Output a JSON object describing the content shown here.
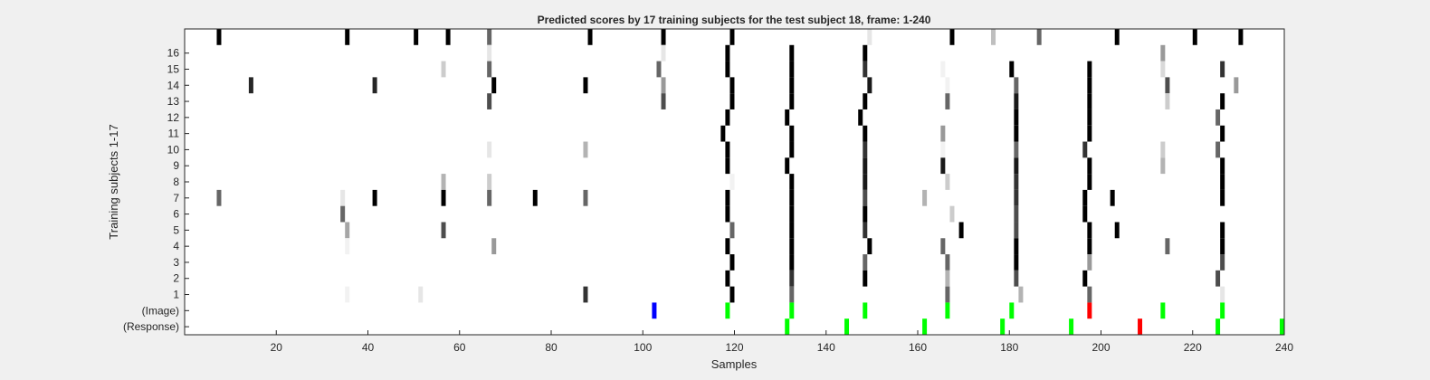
{
  "chart_data": {
    "type": "heatmap",
    "title": "Predicted scores by 17 training subjects for the test subject 18, frame: 1-240",
    "xlabel": "Samples",
    "ylabel": "Training subjects 1-17",
    "xlim": [
      1,
      240
    ],
    "x_ticks": [
      20,
      40,
      60,
      80,
      100,
      120,
      140,
      160,
      180,
      200,
      220,
      240
    ],
    "y_tick_labels": [
      "1",
      "2",
      "3",
      "4",
      "5",
      "6",
      "7",
      "8",
      "9",
      "10",
      "11",
      "12",
      "13",
      "14",
      "15",
      "16"
    ],
    "extra_rows": [
      "(Image)",
      "(Response)"
    ],
    "grid": false,
    "colormap": "gray (white = low score, black = high score)",
    "value_range": [
      0,
      1
    ],
    "rows": [
      {
        "subject": 17,
        "marks": [
          [
            8,
            1
          ],
          [
            36,
            1
          ],
          [
            51,
            1
          ],
          [
            58,
            1
          ],
          [
            67,
            0.6
          ],
          [
            89,
            1
          ],
          [
            105,
            1
          ],
          [
            120,
            1
          ],
          [
            150,
            0.1
          ],
          [
            168,
            1
          ],
          [
            177,
            0.25
          ],
          [
            187,
            0.6
          ],
          [
            204,
            1
          ],
          [
            221,
            1
          ],
          [
            231,
            1
          ]
        ]
      },
      {
        "subject": 16,
        "marks": [
          [
            67,
            0.1
          ],
          [
            105,
            0.1
          ],
          [
            119,
            1
          ],
          [
            133,
            1
          ],
          [
            149,
            1
          ],
          [
            214,
            0.4
          ]
        ]
      },
      {
        "subject": 15,
        "marks": [
          [
            57,
            0.2
          ],
          [
            67,
            0.6
          ],
          [
            104,
            0.6
          ],
          [
            119,
            1
          ],
          [
            133,
            1
          ],
          [
            149,
            0.8
          ],
          [
            166,
            0.05
          ],
          [
            181,
            1
          ],
          [
            198,
            1
          ],
          [
            214,
            0.15
          ],
          [
            227,
            0.8
          ]
        ]
      },
      {
        "subject": 14,
        "marks": [
          [
            15,
            0.85
          ],
          [
            42,
            0.85
          ],
          [
            68,
            1
          ],
          [
            88,
            1
          ],
          [
            105,
            0.4
          ],
          [
            120,
            1
          ],
          [
            133,
            1
          ],
          [
            150,
            0.9
          ],
          [
            167,
            0.05
          ],
          [
            182,
            0.6
          ],
          [
            198,
            1
          ],
          [
            215,
            0.7
          ],
          [
            230,
            0.4
          ]
        ]
      },
      {
        "subject": 13,
        "marks": [
          [
            67,
            0.7
          ],
          [
            105,
            0.7
          ],
          [
            120,
            1
          ],
          [
            133,
            1
          ],
          [
            149,
            1
          ],
          [
            167,
            0.6
          ],
          [
            182,
            0.9
          ],
          [
            198,
            1
          ],
          [
            215,
            0.2
          ],
          [
            227,
            1
          ]
        ]
      },
      {
        "subject": 12,
        "marks": [
          [
            119,
            1
          ],
          [
            132,
            1
          ],
          [
            148,
            1
          ],
          [
            182,
            1
          ],
          [
            198,
            1
          ],
          [
            226,
            0.6
          ]
        ]
      },
      {
        "subject": 11,
        "marks": [
          [
            118,
            1
          ],
          [
            133,
            1
          ],
          [
            149,
            1
          ],
          [
            166,
            0.4
          ],
          [
            182,
            1
          ],
          [
            198,
            1
          ],
          [
            227,
            1
          ]
        ]
      },
      {
        "subject": 10,
        "marks": [
          [
            67,
            0.1
          ],
          [
            88,
            0.3
          ],
          [
            119,
            1
          ],
          [
            133,
            1
          ],
          [
            149,
            0.8
          ],
          [
            166,
            0.05
          ],
          [
            182,
            0.6
          ],
          [
            197,
            0.8
          ],
          [
            214,
            0.2
          ],
          [
            226,
            0.6
          ]
        ]
      },
      {
        "subject": 9,
        "marks": [
          [
            119,
            1
          ],
          [
            132,
            1
          ],
          [
            149,
            0.9
          ],
          [
            166,
            0.9
          ],
          [
            182,
            0.9
          ],
          [
            198,
            1
          ],
          [
            214,
            0.3
          ],
          [
            227,
            1
          ]
        ]
      },
      {
        "subject": 8,
        "marks": [
          [
            57,
            0.3
          ],
          [
            67,
            0.2
          ],
          [
            120,
            0.05
          ],
          [
            133,
            1
          ],
          [
            149,
            0.9
          ],
          [
            167,
            0.2
          ],
          [
            182,
            0.8
          ],
          [
            198,
            1
          ],
          [
            227,
            1
          ]
        ]
      },
      {
        "subject": 7,
        "marks": [
          [
            8,
            0.6
          ],
          [
            35,
            0.1
          ],
          [
            42,
            1
          ],
          [
            57,
            1
          ],
          [
            67,
            0.6
          ],
          [
            77,
            1
          ],
          [
            88,
            0.6
          ],
          [
            119,
            1
          ],
          [
            133,
            1
          ],
          [
            149,
            0.7
          ],
          [
            162,
            0.3
          ],
          [
            182,
            0.8
          ],
          [
            197,
            1
          ],
          [
            203,
            1
          ],
          [
            227,
            1
          ]
        ]
      },
      {
        "subject": 6,
        "marks": [
          [
            35,
            0.6
          ],
          [
            119,
            1
          ],
          [
            133,
            1
          ],
          [
            149,
            1
          ],
          [
            168,
            0.2
          ],
          [
            182,
            0.7
          ],
          [
            197,
            1
          ]
        ]
      },
      {
        "subject": 5,
        "marks": [
          [
            36,
            0.35
          ],
          [
            57,
            0.7
          ],
          [
            120,
            0.6
          ],
          [
            133,
            1
          ],
          [
            149,
            0.8
          ],
          [
            170,
            1
          ],
          [
            182,
            0.7
          ],
          [
            198,
            1
          ],
          [
            204,
            1
          ],
          [
            227,
            1
          ]
        ]
      },
      {
        "subject": 4,
        "marks": [
          [
            36,
            0.05
          ],
          [
            68,
            0.4
          ],
          [
            119,
            1
          ],
          [
            133,
            1
          ],
          [
            150,
            1
          ],
          [
            166,
            0.6
          ],
          [
            182,
            1
          ],
          [
            198,
            1
          ],
          [
            215,
            0.6
          ],
          [
            227,
            1
          ]
        ]
      },
      {
        "subject": 3,
        "marks": [
          [
            120,
            1
          ],
          [
            133,
            1
          ],
          [
            149,
            0.6
          ],
          [
            167,
            0.6
          ],
          [
            182,
            1
          ],
          [
            198,
            0.4
          ],
          [
            227,
            0.7
          ]
        ]
      },
      {
        "subject": 2,
        "marks": [
          [
            119,
            1
          ],
          [
            133,
            0.8
          ],
          [
            149,
            1
          ],
          [
            167,
            0.3
          ],
          [
            182,
            0.7
          ],
          [
            197,
            1
          ],
          [
            226,
            0.7
          ]
        ]
      },
      {
        "subject": 1,
        "marks": [
          [
            36,
            0.05
          ],
          [
            52,
            0.1
          ],
          [
            88,
            0.8
          ],
          [
            120,
            1
          ],
          [
            133,
            0.6
          ],
          [
            167,
            0.6
          ],
          [
            183,
            0.3
          ],
          [
            198,
            0.6
          ],
          [
            227,
            0.1
          ]
        ]
      }
    ],
    "image_markers": [
      {
        "x": 103,
        "color": "#0000ff"
      },
      {
        "x": 119,
        "color": "#00ff00"
      },
      {
        "x": 133,
        "color": "#00ff00"
      },
      {
        "x": 149,
        "color": "#00ff00"
      },
      {
        "x": 167,
        "color": "#00ff00"
      },
      {
        "x": 181,
        "color": "#00ff00"
      },
      {
        "x": 198,
        "color": "#ff0000"
      },
      {
        "x": 214,
        "color": "#00ff00"
      },
      {
        "x": 227,
        "color": "#00ff00"
      }
    ],
    "response_markers": [
      {
        "x": 132,
        "color": "#00ff00"
      },
      {
        "x": 145,
        "color": "#00ff00"
      },
      {
        "x": 162,
        "color": "#00ff00"
      },
      {
        "x": 179,
        "color": "#00ff00"
      },
      {
        "x": 194,
        "color": "#00ff00"
      },
      {
        "x": 209,
        "color": "#ff0000"
      },
      {
        "x": 226,
        "color": "#00ff00"
      },
      {
        "x": 240,
        "color": "#00ff00"
      }
    ]
  }
}
